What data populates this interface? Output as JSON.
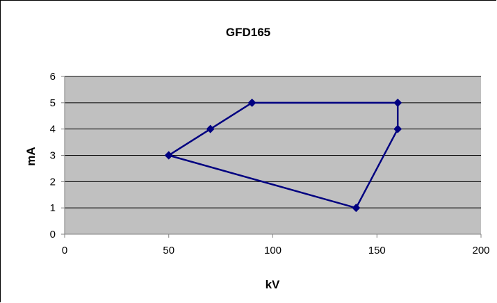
{
  "chart_data": {
    "type": "scatter",
    "title": "GFD165",
    "xlabel": "kV",
    "ylabel": "mA",
    "xlim": [
      0,
      200
    ],
    "ylim": [
      0,
      6
    ],
    "xticks": [
      0,
      50,
      100,
      150,
      200
    ],
    "yticks": [
      0,
      1,
      2,
      3,
      4,
      5,
      6
    ],
    "grid": "horizontal",
    "plot_background": "#c0c0c0",
    "series": [
      {
        "color": "#000080",
        "marker": "diamond",
        "connected": true,
        "points": [
          {
            "x": 50,
            "y": 3
          },
          {
            "x": 70,
            "y": 4
          },
          {
            "x": 90,
            "y": 5
          },
          {
            "x": 160,
            "y": 5
          },
          {
            "x": 160,
            "y": 4
          },
          {
            "x": 140,
            "y": 1
          },
          {
            "x": 50,
            "y": 3
          }
        ]
      }
    ]
  }
}
